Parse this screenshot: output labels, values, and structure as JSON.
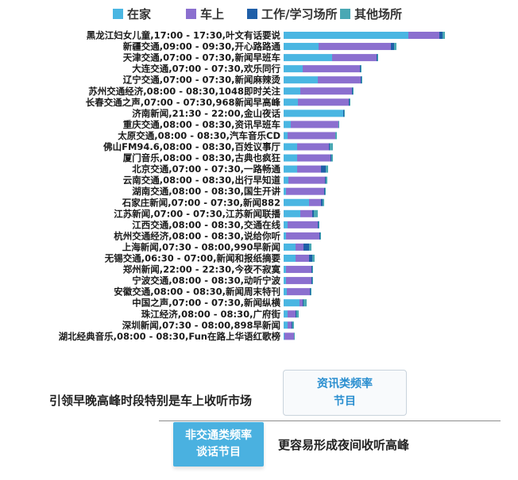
{
  "chart_data": {
    "type": "bar",
    "orientation": "horizontal",
    "stacked": true,
    "legend_position": "top",
    "grid": false,
    "categories": [
      "黑龙江妇女儿童,17:00 - 17:30,叶文有话要说",
      "新疆交通,09:00 - 09:30,开心路路通",
      "天津交通,07:00 - 07:30,新闻早班车",
      "大连交通,07:00 - 07:30,欢乐同行",
      "辽宁交通,07:00 - 07:30,新闻麻辣烫",
      "苏州交通经济,08:00 - 08:30,1048即时关注",
      "长春交通之声,07:00 - 07:30,968新闻早高峰",
      "济南新闻,21:30 - 22:00,金山夜话",
      "重庆交通,08:00 - 08:30,资讯早班车",
      "太原交通,08:00 - 08:30,汽车音乐CD",
      "佛山FM94.6,08:00 - 08:30,百姓议事厅",
      "厦门音乐,08:00 - 08:30,古典也疯狂",
      "北京交通,07:00 - 07:30,一路畅通",
      "云南交通,08:00 - 08:30,出行早知道",
      "湖南交通,08:00 - 08:30,国生开讲",
      "石家庄新闻,07:00 - 07:30,新闻882",
      "江苏新闻,07:00 - 07:30,江苏新闻联播",
      "江西交通,08:00 - 08:30,交通在线",
      "杭州交通经济,08:00 - 08:30,说给你听",
      "上海新闻,07:30 - 08:00,990早新闻",
      "无锡交通,06:30 - 07:00,新闻和报纸摘要",
      "郑州新闻,22:00 - 22:30,今夜不寂寞",
      "宁波交通,08:00 - 08:30,动听宁波",
      "安徽交通,08:00 - 08:30,新闻周末特刊",
      "中国之声,07:00 - 07:30,新闻纵横",
      "珠江经济,08:00 - 08:30,广府街",
      "深圳新闻,07:30 - 08:00,898早新闻",
      "湖北经典音乐,08:00 - 08:30,Fun在路上华语红歌榜"
    ],
    "series": [
      {
        "name": "在家",
        "color": "#4ab6e2",
        "values": [
          157,
          44,
          61,
          24,
          43,
          21,
          18,
          75,
          9,
          5,
          17,
          17,
          17,
          6,
          3,
          32,
          21,
          5,
          3,
          15,
          15,
          3,
          3,
          4,
          20,
          5,
          5,
          1
        ]
      },
      {
        "name": "车上",
        "color": "#8b6fcf",
        "values": [
          39,
          91,
          56,
          72,
          54,
          65,
          64,
          0,
          60,
          60,
          40,
          42,
          30,
          46,
          48,
          15,
          15,
          38,
          42,
          10,
          17,
          32,
          32,
          29,
          4,
          10,
          5,
          12
        ]
      },
      {
        "name": "工作/学习场所",
        "color": "#1f5fa8",
        "values": [
          4,
          4,
          1,
          1,
          1,
          1,
          1,
          1,
          0,
          0,
          1,
          1,
          6,
          1,
          1,
          2,
          2,
          1,
          1,
          7,
          4,
          1,
          1,
          1,
          1,
          1,
          1,
          0
        ]
      },
      {
        "name": "其他场所",
        "color": "#4aa8b4",
        "values": [
          3,
          3,
          1,
          1,
          1,
          1,
          1,
          1,
          1,
          2,
          4,
          2,
          3,
          2,
          1,
          2,
          5,
          1,
          1,
          3,
          3,
          1,
          1,
          1,
          4,
          3,
          2,
          1
        ]
      }
    ]
  },
  "annotations": {
    "news_box_line1": "资讯类频率",
    "news_box_line2": "节目",
    "left_note": "引领早晚高峰时段特别是车上收听市场",
    "badge_line1": "非交通类频率",
    "badge_line2": "谈话节目",
    "right_note": "更容易形成夜间收听高峰"
  }
}
